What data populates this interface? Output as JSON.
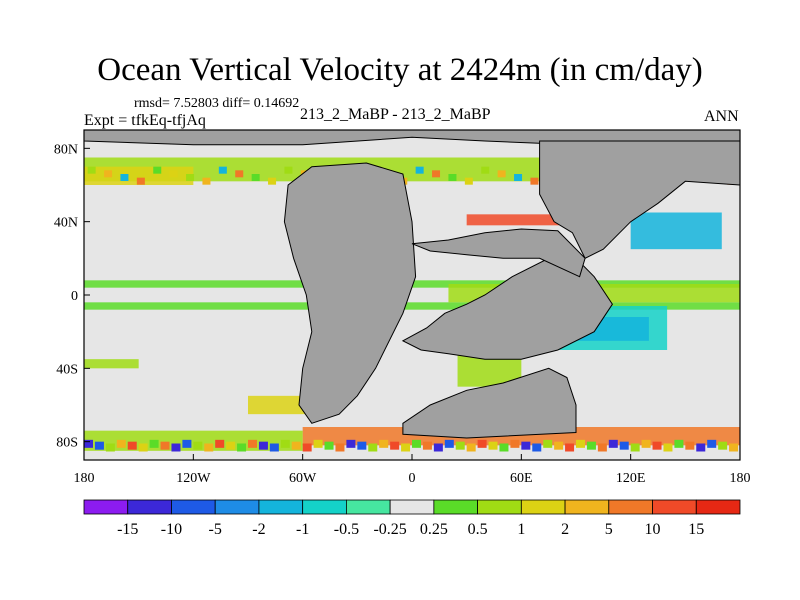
{
  "chart_data": {
    "type": "heatmap",
    "title": "Ocean Vertical Velocity at 2424m (in cm/day)",
    "stats_text": "rmsd= 7.52803 diff= 0.14692",
    "expt_text": "Expt = tfkEq-tfjAq",
    "subtitle": "213_2_MaBP - 213_2_MaBP",
    "season": "ANN",
    "x_ticks": [
      "180",
      "120W",
      "60W",
      "0",
      "60E",
      "120E",
      "180"
    ],
    "y_ticks": [
      "80N",
      "40N",
      "0",
      "40S",
      "80S"
    ],
    "xlim": [
      -180,
      180
    ],
    "ylim": [
      -90,
      90
    ],
    "colorbar": {
      "labels": [
        "-15",
        "-10",
        "-5",
        "-2",
        "-1",
        "-0.5",
        "-0.25",
        "0.25",
        "0.5",
        "1",
        "2",
        "5",
        "10",
        "15"
      ],
      "colors": [
        "#8c1cf0",
        "#3c28d8",
        "#1e5ae6",
        "#1e8ce6",
        "#14b4dc",
        "#14d2c8",
        "#46e6a0",
        "#e6e6e6",
        "#5adc28",
        "#a0dc14",
        "#dcd214",
        "#f0b41e",
        "#f07828",
        "#f04a28",
        "#e62814"
      ]
    },
    "land_color": "#a0a0a0",
    "background_color": "#e6e6e6"
  }
}
